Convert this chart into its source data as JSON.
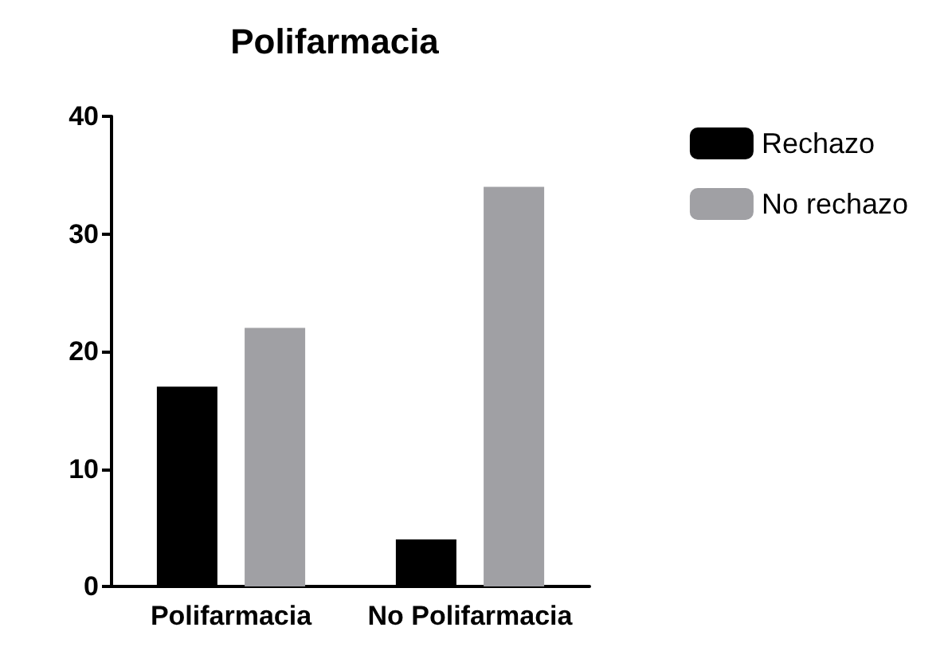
{
  "chart_data": {
    "type": "bar",
    "title": "Polifarmacia",
    "categories": [
      "Polifarmacia",
      "No Polifarmacia"
    ],
    "series": [
      {
        "name": "Rechazo",
        "color": "#000000",
        "values": [
          17,
          4
        ]
      },
      {
        "name": "No rechazo",
        "color": "#a0a0a4",
        "values": [
          22,
          34
        ]
      }
    ],
    "ylim": [
      0,
      40
    ],
    "yticks": [
      0,
      10,
      20,
      30,
      40
    ],
    "grid": false,
    "legend": "top right"
  }
}
